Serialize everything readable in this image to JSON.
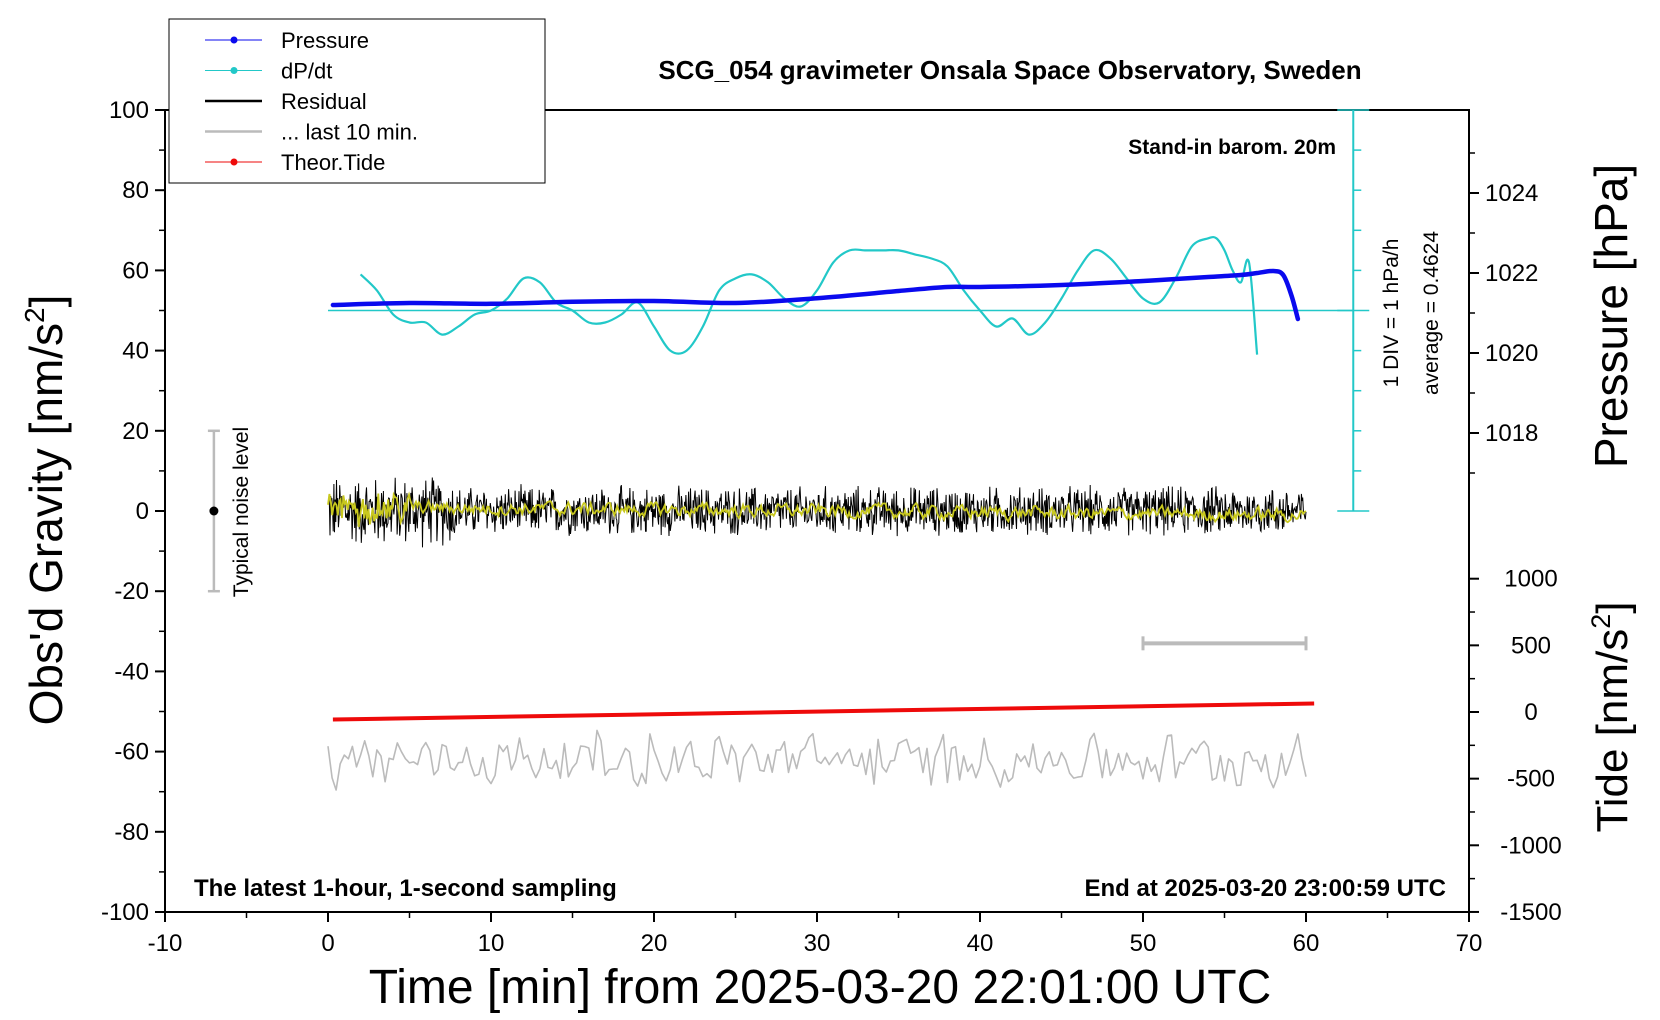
{
  "chart_data": {
    "type": "line",
    "title": "SCG_054 gravimeter Onsala Space Observatory, Sweden",
    "xlabel": "Time [min] from 2025-03-20 22:01:00 UTC",
    "ylabel_main": "Obs'd Gravity [nm/s",
    "ylabel_main_sup": "2",
    "ylabel_main_end": "]",
    "ylabel_pressure": "Pressure [hPa]",
    "ylabel_tide": "Tide [nm/s",
    "ylabel_tide_sup": "2",
    "ylabel_tide_end": "]",
    "xlim": [
      -10,
      70
    ],
    "ylim": [
      -100,
      100
    ],
    "x_ticks": [
      "-10",
      "0",
      "10",
      "20",
      "30",
      "40",
      "50",
      "60",
      "70"
    ],
    "y_ticks": [
      "-100",
      "-80",
      "-60",
      "-40",
      "-20",
      "0",
      "20",
      "40",
      "60",
      "80",
      "100"
    ],
    "pressure_ticks": [
      "1018",
      "1020",
      "1022",
      "1024"
    ],
    "tide_ticks": [
      "-1500",
      "-1000",
      "-500",
      "0",
      "500",
      "1000"
    ],
    "legend": [
      "Pressure",
      "dP/dt",
      "Residual",
      "... last 10 min.",
      "Theor.Tide"
    ],
    "annotations": {
      "barometer": "Stand-in barom. 20m",
      "div": "1 DIV = 1 hPa/h",
      "average": "average = 0.4624",
      "noise": "Typical noise level",
      "footer_left": "The latest 1-hour, 1-second sampling",
      "footer_right": "End at 2025-03-20 23:00:59 UTC"
    },
    "series": [
      {
        "name": "Pressure",
        "unit": "hPa",
        "color": "#0a0aee",
        "x": [
          0.3,
          5,
          10,
          15,
          20,
          25,
          30,
          35,
          38,
          40,
          45,
          50,
          52,
          54,
          56,
          57,
          58,
          58.6,
          59.1,
          59.5
        ],
        "values": [
          1021.2,
          1021.25,
          1021.23,
          1021.28,
          1021.3,
          1021.25,
          1021.37,
          1021.55,
          1021.65,
          1021.65,
          1021.7,
          1021.8,
          1021.85,
          1021.9,
          1021.95,
          1022.0,
          1022.05,
          1021.95,
          1021.45,
          1020.85
        ]
      },
      {
        "name": "dP/dt",
        "unit": "nm/s^2 axis",
        "color": "#22c8c8",
        "x": [
          2,
          3,
          4,
          5,
          6,
          7,
          8,
          9,
          10,
          11,
          12,
          13,
          14,
          15,
          16,
          17,
          18,
          19,
          20,
          21,
          22,
          23,
          24,
          25,
          26,
          27,
          28,
          29,
          30,
          31,
          32,
          33,
          34,
          35,
          36,
          37,
          38,
          39,
          40,
          41,
          42,
          43,
          44,
          45,
          46,
          47,
          48,
          49,
          50,
          51,
          52,
          53,
          54,
          54.5,
          55,
          55.5,
          56,
          56.5,
          57
        ],
        "values": [
          59,
          55,
          49,
          47,
          47,
          44,
          46,
          49,
          50,
          53,
          58,
          57,
          52,
          50,
          47,
          47,
          49,
          52,
          46,
          40,
          40,
          46,
          55,
          58,
          59,
          57,
          53,
          51,
          55,
          62,
          65,
          65,
          65,
          65,
          64,
          63,
          61,
          55,
          50,
          46,
          48,
          44,
          47,
          53,
          60,
          65,
          63,
          58,
          53,
          52,
          58,
          66,
          68,
          68,
          65,
          60,
          57,
          62,
          39
        ]
      },
      {
        "name": "Residual",
        "color": "#000000",
        "x_range": [
          0,
          60
        ],
        "amplitude": [
          10,
          7
        ],
        "center": 0
      },
      {
        "name": "Residual filtered",
        "color": "#c8c81e",
        "x_range": [
          0,
          60
        ],
        "amplitude": 2,
        "center": 1
      },
      {
        "name": "... last 10 min.",
        "color": "#bbbbbb",
        "x_range": [
          0,
          60
        ],
        "center": -62,
        "amplitude": 6
      },
      {
        "name": "Theor.Tide",
        "unit": "nm/s^2",
        "color": "#ee0a0a",
        "x": [
          0.3,
          60.5
        ],
        "values": [
          -52,
          -48
        ]
      }
    ],
    "noise_bar": {
      "x": -7,
      "y_min": -20,
      "y_max": 20,
      "y_center": 0
    },
    "scale_bar": {
      "x_start": 50,
      "x_end": 60,
      "y": -33
    },
    "dpdt_baseline": 50,
    "dpdt_axis": {
      "x": 62.9,
      "y_min": 0,
      "y_max": 100
    }
  }
}
